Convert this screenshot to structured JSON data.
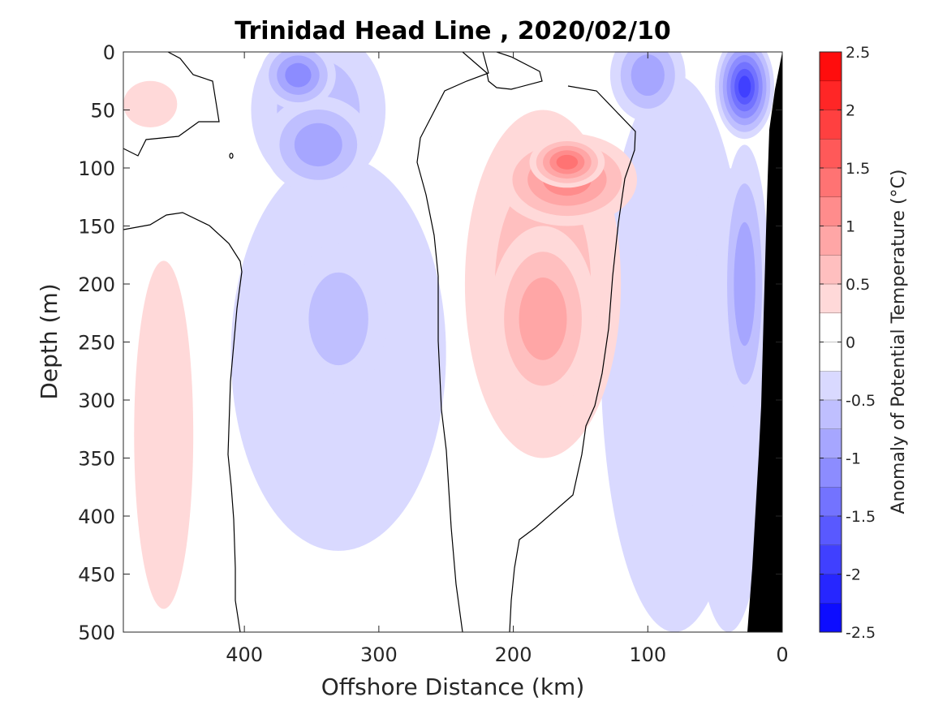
{
  "chart_data": {
    "type": "heatmap",
    "subtype": "filled-contour",
    "title": "Trinidad Head Line , 2020/02/10",
    "xlabel": "Offshore Distance (km)",
    "ylabel": "Depth (m)",
    "x_reversed": true,
    "y_reversed": true,
    "xlim": [
      490,
      0
    ],
    "ylim": [
      0,
      500
    ],
    "xticks": [
      400,
      300,
      200,
      100,
      0
    ],
    "yticks": [
      0,
      50,
      100,
      150,
      200,
      250,
      300,
      350,
      400,
      450,
      500
    ],
    "colorbar": {
      "label": "Anomaly of Potential Temperature (°C)",
      "min": -2.5,
      "max": 2.5,
      "step": 0.25,
      "ticks": [
        2.5,
        2,
        1.5,
        1,
        0.5,
        0,
        -0.5,
        -1,
        -1.5,
        -2,
        -2.5
      ],
      "tick_labels": [
        "2.5",
        "2",
        "1.5",
        "1",
        "0.5",
        "0",
        "-0.5",
        "-1",
        "-1.5",
        "-2",
        "-2.5"
      ],
      "colormap": "blue-white-red",
      "color_neg": "#0000ff",
      "color_zero": "#ffffff",
      "color_pos": "#ff0000"
    },
    "bathymetry_color": "#000000",
    "zero_contour": "black line",
    "features": [
      {
        "x": 178,
        "y": 200,
        "rx": 58,
        "ry": 150,
        "value": 0.5
      },
      {
        "x": 178,
        "y": 230,
        "rx": 40,
        "ry": 80,
        "value": 0.75
      },
      {
        "x": 160,
        "y": 110,
        "rx": 52,
        "ry": 40,
        "value": 1.15
      },
      {
        "x": 160,
        "y": 95,
        "rx": 28,
        "ry": 22,
        "value": 1.3
      },
      {
        "x": 460,
        "y": 330,
        "rx": 22,
        "ry": 150,
        "value": 0.3
      },
      {
        "x": 470,
        "y": 45,
        "rx": 20,
        "ry": 20,
        "value": 0.45
      },
      {
        "x": 345,
        "y": 80,
        "rx": 40,
        "ry": 42,
        "value": -0.9
      },
      {
        "x": 345,
        "y": 50,
        "rx": 50,
        "ry": 70,
        "value": -0.5
      },
      {
        "x": 360,
        "y": 20,
        "rx": 28,
        "ry": 30,
        "value": -1.0
      },
      {
        "x": 330,
        "y": 230,
        "rx": 36,
        "ry": 65,
        "value": -0.55
      },
      {
        "x": 330,
        "y": 260,
        "rx": 80,
        "ry": 170,
        "value": -0.3
      },
      {
        "x": 100,
        "y": 20,
        "rx": 28,
        "ry": 40,
        "value": -0.85
      },
      {
        "x": 80,
        "y": 260,
        "rx": 55,
        "ry": 240,
        "value": -0.3
      },
      {
        "x": 28,
        "y": 30,
        "rx": 22,
        "ry": 45,
        "value": -1.8
      },
      {
        "x": 28,
        "y": 200,
        "rx": 18,
        "ry": 120,
        "value": -0.8
      },
      {
        "x": 40,
        "y": 300,
        "rx": 30,
        "ry": 200,
        "value": -0.45
      }
    ]
  }
}
